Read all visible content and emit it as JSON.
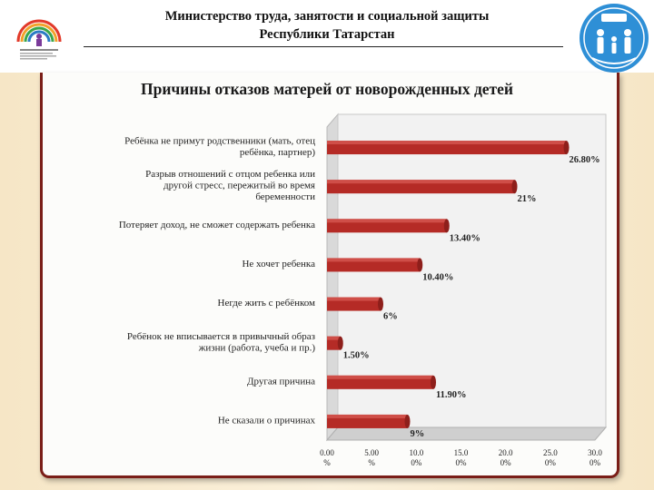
{
  "header": {
    "org_line1": "Министерство труда, занятости и социальной защиты",
    "org_line2": "Республики Татарстан"
  },
  "chart_data": {
    "type": "bar",
    "orientation": "horizontal",
    "title": "Причины отказов матерей от новорожденных детей",
    "categories": [
      [
        "Ребёнка не примут родственники (мать, отец",
        "ребёнка, партнер)"
      ],
      [
        "Разрыв отношений с отцом ребенка или",
        "другой стресс, пережитый во время",
        "беременности"
      ],
      [
        "Потеряет доход, не сможет содержать ребенка"
      ],
      [
        "Не хочет ребенка"
      ],
      [
        "Негде жить с ребёнком"
      ],
      [
        "Ребёнок не вписывается в привычный образ",
        "жизни (работа, учеба и пр.)"
      ],
      [
        "Другая причина"
      ],
      [
        "Не сказали о причинах"
      ]
    ],
    "values": [
      26.8,
      21,
      13.4,
      10.4,
      6,
      1.5,
      11.9,
      9
    ],
    "value_labels": [
      "26.80%",
      "21%",
      "13.40%",
      "10.40%",
      "6%",
      "1.50%",
      "11.90%",
      "9%"
    ],
    "xlim": [
      0,
      30
    ],
    "xticks": [
      [
        "0.00",
        "%"
      ],
      [
        "5.00",
        "%"
      ],
      [
        "10.0",
        "0%"
      ],
      [
        "15.0",
        "0%"
      ],
      [
        "20.0",
        "0%"
      ],
      [
        "25.0",
        "0%"
      ],
      [
        "30.0",
        "0%"
      ]
    ],
    "bar_color": "#b52b26",
    "grid": false
  }
}
